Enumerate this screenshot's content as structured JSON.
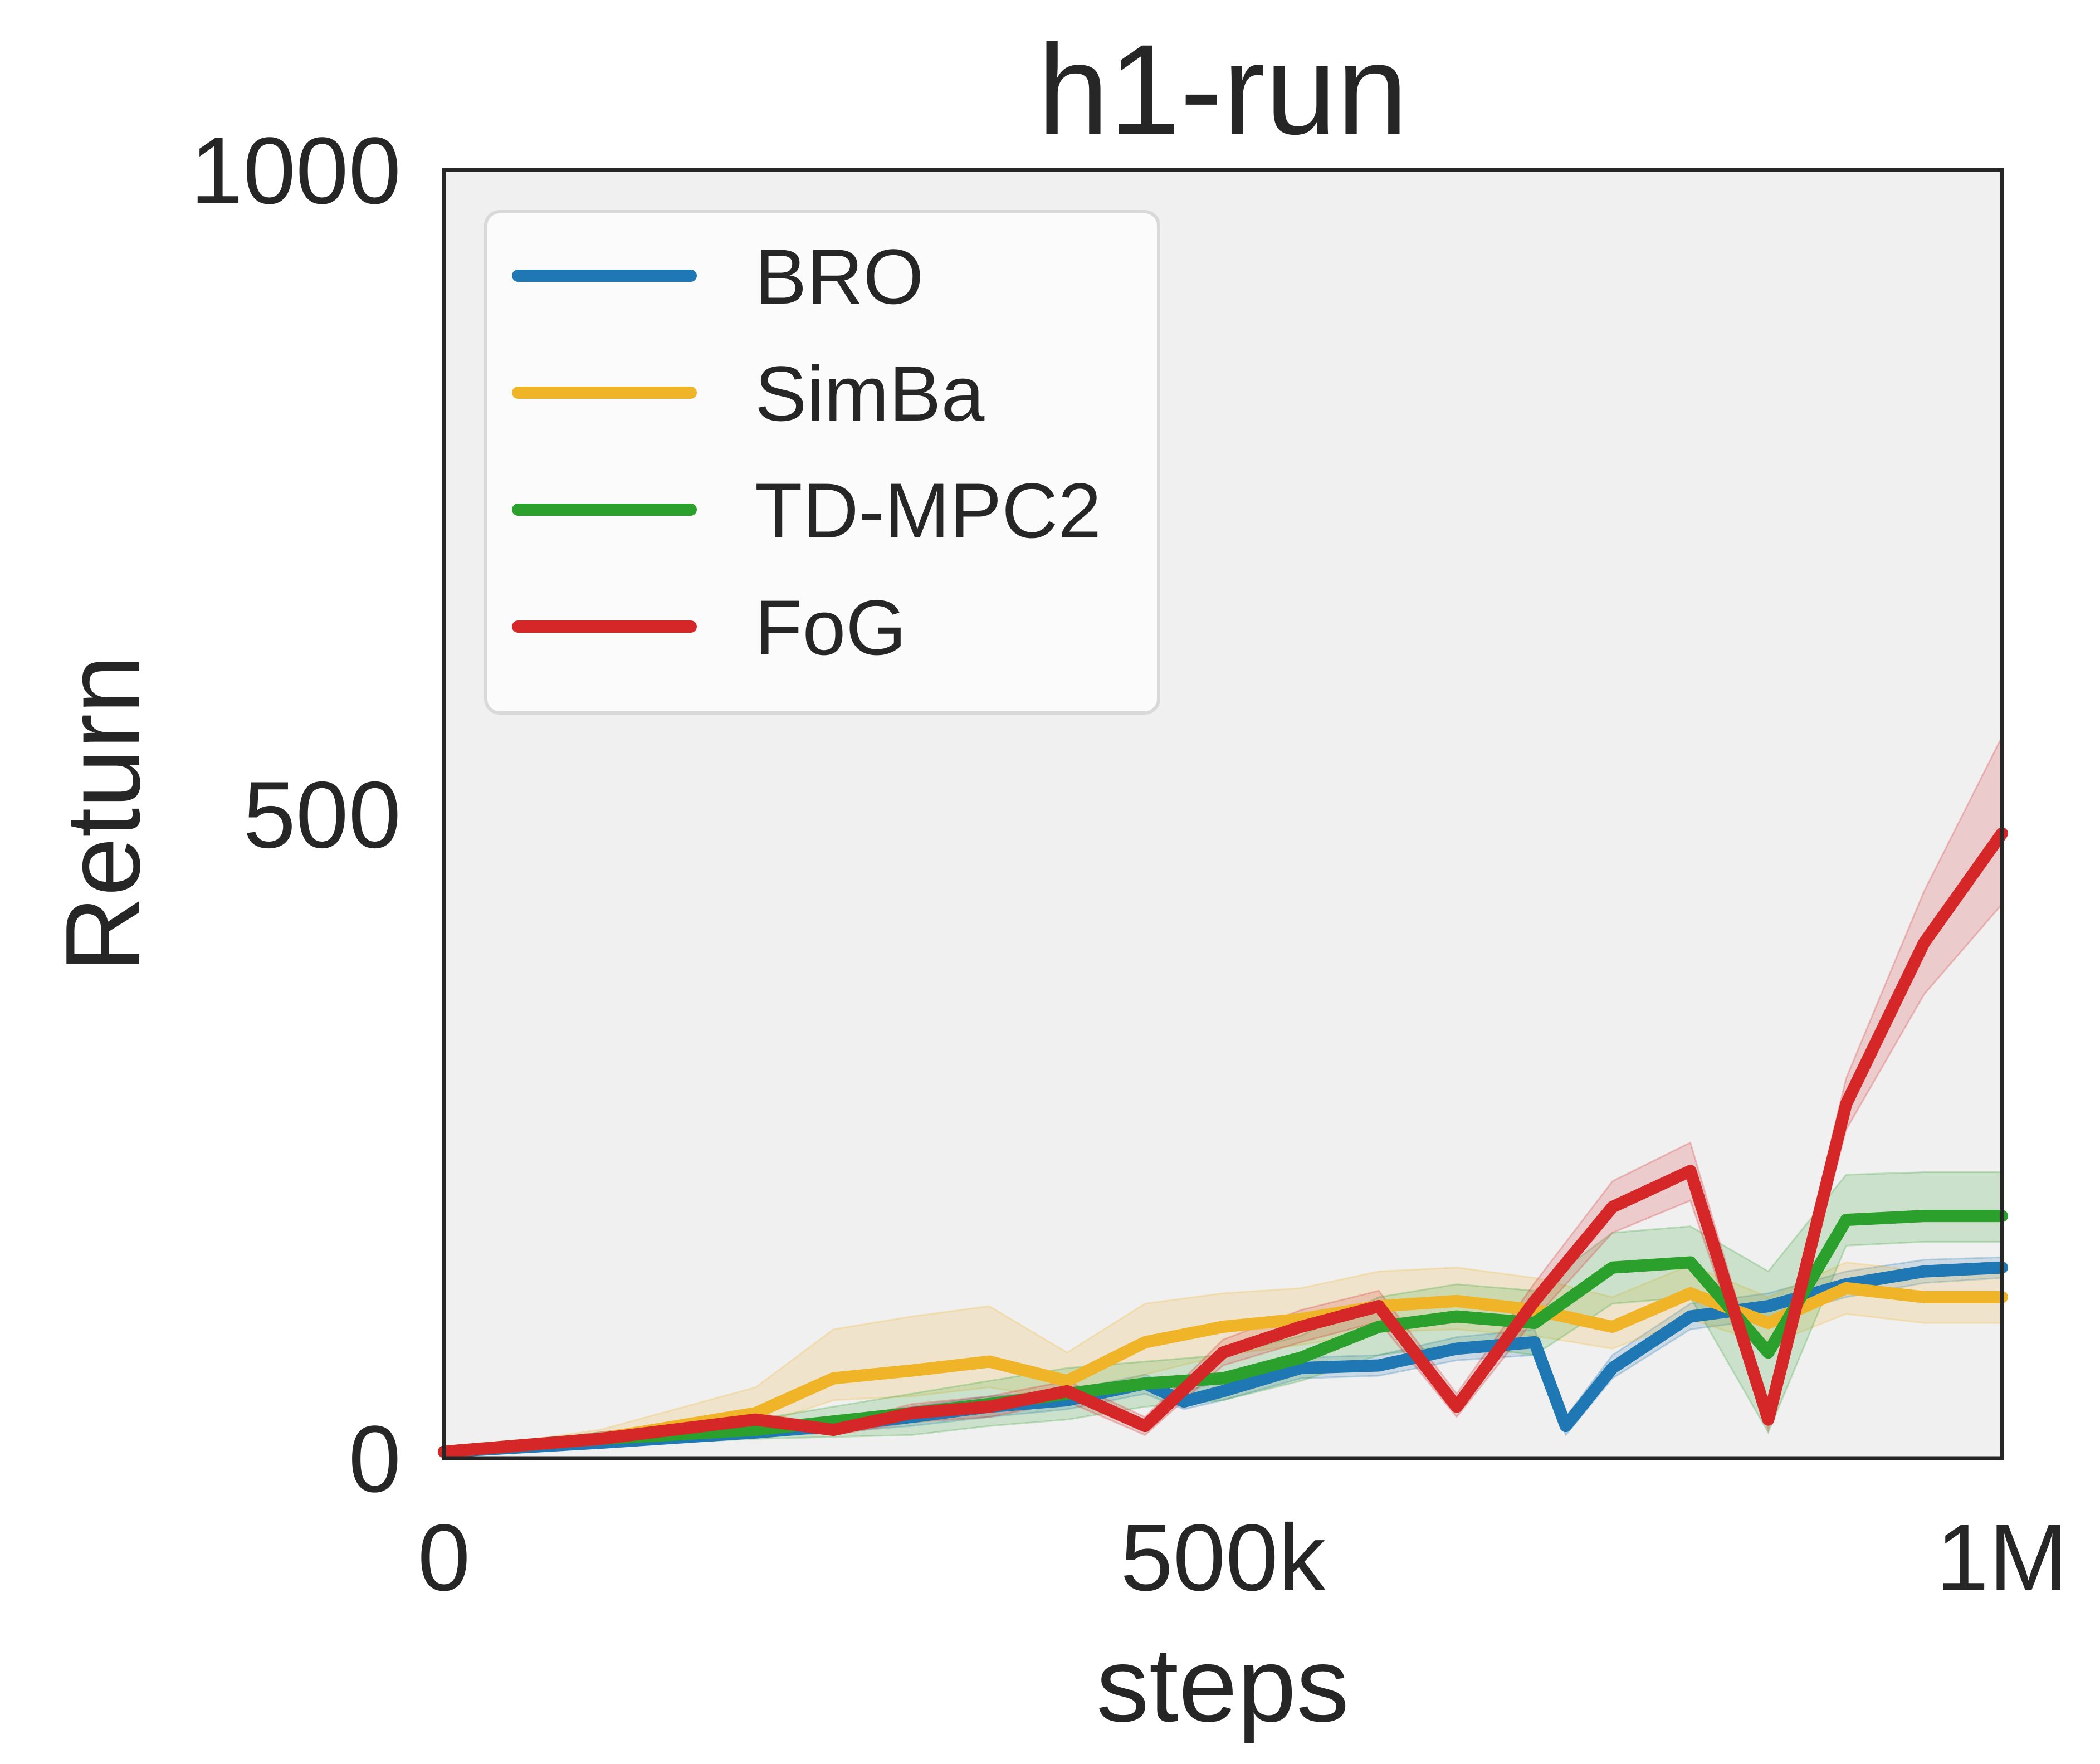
{
  "chart_data": {
    "type": "line",
    "title": "h1-run",
    "xlabel": "steps",
    "ylabel": "Return",
    "xlim": [
      0,
      1000000
    ],
    "ylim": [
      0,
      1000
    ],
    "x_ticks": [
      {
        "value": 0,
        "label": "0"
      },
      {
        "value": 500000,
        "label": "500k"
      },
      {
        "value": 1000000,
        "label": "1M"
      }
    ],
    "y_ticks": [
      {
        "value": 0,
        "label": "0"
      },
      {
        "value": 500,
        "label": "500"
      },
      {
        "value": 1000,
        "label": "1000"
      }
    ],
    "grid": false,
    "legend_position": "top-left",
    "background": "#f0f0f0",
    "series": [
      {
        "name": "BRO",
        "color": "#1f77b4",
        "x": [
          0,
          100000,
          200000,
          250000,
          300000,
          350000,
          400000,
          450000,
          475000,
          500000,
          550000,
          600000,
          650000,
          700000,
          720000,
          750000,
          800000,
          850000,
          900000,
          950000,
          1000000
        ],
        "y": [
          5,
          12,
          20,
          25,
          32,
          40,
          45,
          58,
          44,
          52,
          70,
          72,
          85,
          90,
          25,
          70,
          110,
          118,
          135,
          145,
          148
        ],
        "band": [
          [
            5,
            5
          ],
          [
            9,
            15
          ],
          [
            16,
            24
          ],
          [
            20,
            30
          ],
          [
            25,
            40
          ],
          [
            32,
            48
          ],
          [
            38,
            52
          ],
          [
            50,
            65
          ],
          [
            38,
            52
          ],
          [
            45,
            60
          ],
          [
            62,
            78
          ],
          [
            64,
            80
          ],
          [
            76,
            94
          ],
          [
            80,
            100
          ],
          [
            18,
            32
          ],
          [
            62,
            80
          ],
          [
            100,
            120
          ],
          [
            108,
            128
          ],
          [
            125,
            145
          ],
          [
            136,
            154
          ],
          [
            140,
            156
          ]
        ]
      },
      {
        "name": "SimBa",
        "color": "#f0b429",
        "x": [
          0,
          100000,
          200000,
          250000,
          300000,
          350000,
          400000,
          450000,
          500000,
          550000,
          600000,
          650000,
          700000,
          750000,
          800000,
          850000,
          900000,
          950000,
          1000000
        ],
        "y": [
          5,
          15,
          35,
          62,
          68,
          75,
          60,
          90,
          102,
          108,
          118,
          122,
          115,
          102,
          128,
          105,
          132,
          125,
          125
        ],
        "band": [
          [
            5,
            5
          ],
          [
            10,
            22
          ],
          [
            25,
            55
          ],
          [
            45,
            100
          ],
          [
            48,
            110
          ],
          [
            55,
            118
          ],
          [
            45,
            82
          ],
          [
            65,
            120
          ],
          [
            80,
            128
          ],
          [
            88,
            132
          ],
          [
            98,
            145
          ],
          [
            100,
            148
          ],
          [
            95,
            140
          ],
          [
            85,
            125
          ],
          [
            108,
            150
          ],
          [
            88,
            125
          ],
          [
            112,
            152
          ],
          [
            105,
            145
          ],
          [
            105,
            145
          ]
        ]
      },
      {
        "name": "TD-MPC2",
        "color": "#2ca02c",
        "x": [
          0,
          100000,
          200000,
          300000,
          350000,
          400000,
          450000,
          500000,
          550000,
          600000,
          650000,
          700000,
          750000,
          800000,
          850000,
          900000,
          950000,
          1000000
        ],
        "y": [
          5,
          15,
          22,
          35,
          42,
          50,
          58,
          62,
          78,
          102,
          110,
          105,
          148,
          152,
          82,
          185,
          188,
          188
        ],
        "band": [
          [
            5,
            5
          ],
          [
            10,
            20
          ],
          [
            15,
            30
          ],
          [
            18,
            50
          ],
          [
            25,
            60
          ],
          [
            30,
            70
          ],
          [
            40,
            75
          ],
          [
            45,
            80
          ],
          [
            60,
            95
          ],
          [
            80,
            125
          ],
          [
            88,
            135
          ],
          [
            80,
            130
          ],
          [
            120,
            175
          ],
          [
            125,
            180
          ],
          [
            20,
            145
          ],
          [
            165,
            220
          ],
          [
            168,
            222
          ],
          [
            168,
            222
          ]
        ]
      },
      {
        "name": "FoG",
        "color": "#d62728",
        "x": [
          0,
          100000,
          200000,
          250000,
          300000,
          350000,
          400000,
          450000,
          500000,
          550000,
          600000,
          650000,
          700000,
          750000,
          800000,
          850000,
          900000,
          950000,
          1000000
        ],
        "y": [
          5,
          15,
          30,
          22,
          35,
          40,
          52,
          25,
          82,
          102,
          118,
          40,
          122,
          195,
          223,
          30,
          275,
          400,
          485
        ],
        "band": [
          [
            5,
            5
          ],
          [
            10,
            20
          ],
          [
            25,
            35
          ],
          [
            18,
            26
          ],
          [
            28,
            42
          ],
          [
            32,
            48
          ],
          [
            44,
            60
          ],
          [
            18,
            32
          ],
          [
            72,
            92
          ],
          [
            90,
            115
          ],
          [
            106,
            130
          ],
          [
            32,
            50
          ],
          [
            108,
            136
          ],
          [
            175,
            215
          ],
          [
            200,
            245
          ],
          [
            22,
            40
          ],
          [
            255,
            295
          ],
          [
            360,
            440
          ],
          [
            430,
            560
          ]
        ]
      }
    ]
  }
}
